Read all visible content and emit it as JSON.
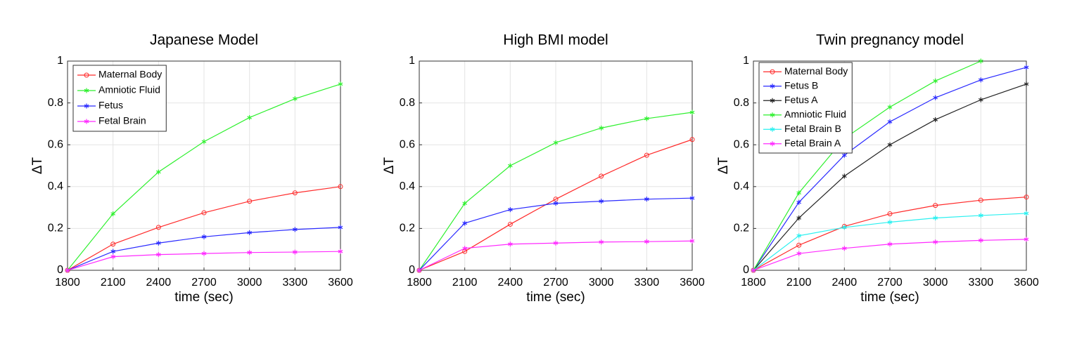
{
  "chart_data": [
    {
      "type": "line",
      "title": "Japanese Model",
      "x_label": "time (sec)",
      "y_label": "ΔT",
      "x": [
        1800,
        2100,
        2400,
        2700,
        3000,
        3300,
        3600
      ],
      "xlim": [
        1800,
        3600
      ],
      "xticks": [
        1800,
        2100,
        2400,
        2700,
        3000,
        3300,
        3600
      ],
      "ylim": [
        0,
        1
      ],
      "yticks": [
        0,
        0.2,
        0.4,
        0.6,
        0.8,
        1
      ],
      "grid": true,
      "legend": "upper left",
      "series": [
        {
          "name": "Maternal Body",
          "color": "#ff2a2a",
          "marker": "o",
          "values": [
            0,
            0.125,
            0.205,
            0.275,
            0.33,
            0.37,
            0.4
          ]
        },
        {
          "name": "Amniotic Fluid",
          "color": "#2ef02e",
          "marker": "*",
          "values": [
            0,
            0.27,
            0.47,
            0.615,
            0.73,
            0.82,
            0.89
          ]
        },
        {
          "name": "Fetus",
          "color": "#2a2aff",
          "marker": "*",
          "values": [
            0,
            0.09,
            0.13,
            0.16,
            0.18,
            0.195,
            0.205
          ]
        },
        {
          "name": "Fetal Brain",
          "color": "#ff2aff",
          "marker": "*",
          "values": [
            0,
            0.065,
            0.075,
            0.08,
            0.085,
            0.087,
            0.09
          ]
        }
      ]
    },
    {
      "type": "line",
      "title": "High BMI model",
      "x_label": "time (sec)",
      "y_label": "ΔT",
      "x": [
        1800,
        2100,
        2400,
        2700,
        3000,
        3300,
        3600
      ],
      "xlim": [
        1800,
        3600
      ],
      "xticks": [
        1800,
        2100,
        2400,
        2700,
        3000,
        3300,
        3600
      ],
      "ylim": [
        0,
        1
      ],
      "yticks": [
        0,
        0.2,
        0.4,
        0.6,
        0.8,
        1
      ],
      "grid": true,
      "series": [
        {
          "color": "#ff2a2a",
          "marker": "o",
          "values": [
            0,
            0.09,
            0.22,
            0.34,
            0.45,
            0.55,
            0.625
          ]
        },
        {
          "color": "#2ef02e",
          "marker": "*",
          "values": [
            0,
            0.32,
            0.5,
            0.61,
            0.68,
            0.725,
            0.755
          ]
        },
        {
          "color": "#2a2aff",
          "marker": "*",
          "values": [
            0,
            0.225,
            0.29,
            0.32,
            0.33,
            0.34,
            0.345
          ]
        },
        {
          "color": "#ff2aff",
          "marker": "*",
          "values": [
            0,
            0.105,
            0.125,
            0.13,
            0.135,
            0.137,
            0.14
          ]
        }
      ]
    },
    {
      "type": "line",
      "title": "Twin pregnancy model",
      "x_label": "time (sec)",
      "y_label": "ΔT",
      "x": [
        1800,
        2100,
        2400,
        2700,
        3000,
        3300,
        3600
      ],
      "xlim": [
        1800,
        3600
      ],
      "xticks": [
        1800,
        2100,
        2400,
        2700,
        3000,
        3300,
        3600
      ],
      "ylim": [
        0,
        1
      ],
      "yticks": [
        0,
        0.2,
        0.4,
        0.6,
        0.8,
        1
      ],
      "grid": true,
      "legend": "upper left",
      "series": [
        {
          "name": "Maternal Body",
          "color": "#ff2a2a",
          "marker": "o",
          "values": [
            0,
            0.12,
            0.21,
            0.27,
            0.31,
            0.335,
            0.35
          ]
        },
        {
          "name": "Fetus B",
          "color": "#2a2aff",
          "marker": "*",
          "values": [
            0,
            0.325,
            0.55,
            0.71,
            0.825,
            0.91,
            0.97
          ]
        },
        {
          "name": "Fetus A",
          "color": "#222222",
          "marker": "*",
          "values": [
            0,
            0.25,
            0.45,
            0.6,
            0.72,
            0.815,
            0.89
          ]
        },
        {
          "name": "Amniotic Fluid",
          "color": "#2ef02e",
          "marker": "*",
          "values": [
            0,
            0.37,
            0.63,
            0.78,
            0.905,
            1.0,
            null
          ]
        },
        {
          "name": "Fetal Brain B",
          "color": "#2af0f0",
          "marker": "*",
          "values": [
            0,
            0.165,
            0.205,
            0.23,
            0.25,
            0.262,
            0.272
          ]
        },
        {
          "name": "Fetal Brain A",
          "color": "#ff2aff",
          "marker": "*",
          "values": [
            0,
            0.08,
            0.105,
            0.125,
            0.135,
            0.143,
            0.148
          ]
        }
      ]
    }
  ]
}
